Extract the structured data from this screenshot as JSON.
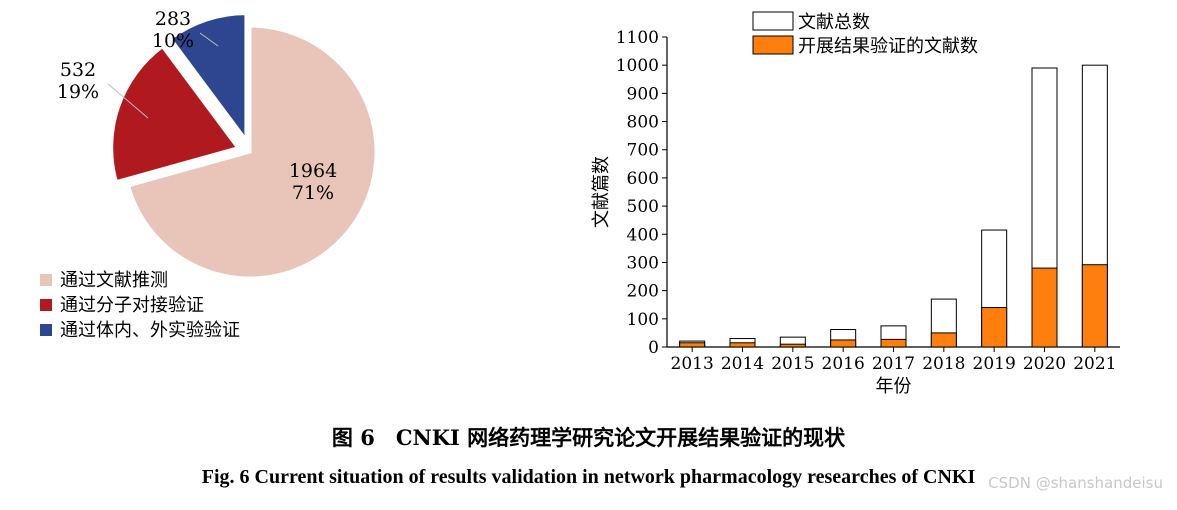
{
  "chart_data": [
    {
      "type": "pie",
      "slices": [
        {
          "label": "通过文献推测",
          "value": 1964,
          "percent": "71%",
          "color": "#e9c4b8",
          "exploded": false
        },
        {
          "label": "通过分子对接验证",
          "value": 532,
          "percent": "19%",
          "color": "#b0191e",
          "exploded": true
        },
        {
          "label": "通过体内、外实验验证",
          "value": 283,
          "percent": "10%",
          "color": "#2e4690",
          "exploded": true
        }
      ],
      "legend_position": "bottom-left"
    },
    {
      "type": "bar",
      "stacked": false,
      "overlaid": true,
      "categories": [
        "2013",
        "2014",
        "2015",
        "2016",
        "2017",
        "2018",
        "2019",
        "2020",
        "2021"
      ],
      "series": [
        {
          "name": "文献总数",
          "values": [
            21,
            30,
            35,
            62,
            75,
            170,
            415,
            990,
            1000
          ],
          "color": "#ffffff"
        },
        {
          "name": "开展结果验证的文献数",
          "values": [
            15,
            15,
            10,
            25,
            27,
            50,
            140,
            280,
            292
          ],
          "color": "#ff7f0e"
        }
      ],
      "xlabel": "年份",
      "ylabel": "文献篇数",
      "ylim": [
        0,
        1100
      ],
      "yticks": [
        0,
        100,
        200,
        300,
        400,
        500,
        600,
        700,
        800,
        900,
        1000,
        1100
      ],
      "legend_position": "top-left",
      "grid": false
    }
  ],
  "caption": {
    "cn": "图 6　CNKI 网络药理学研究论文开展结果验证的现状",
    "en": "Fig. 6   Current situation of results validation in network pharmacology researches of CNKI"
  },
  "watermark": "CSDN @shanshandeisu"
}
